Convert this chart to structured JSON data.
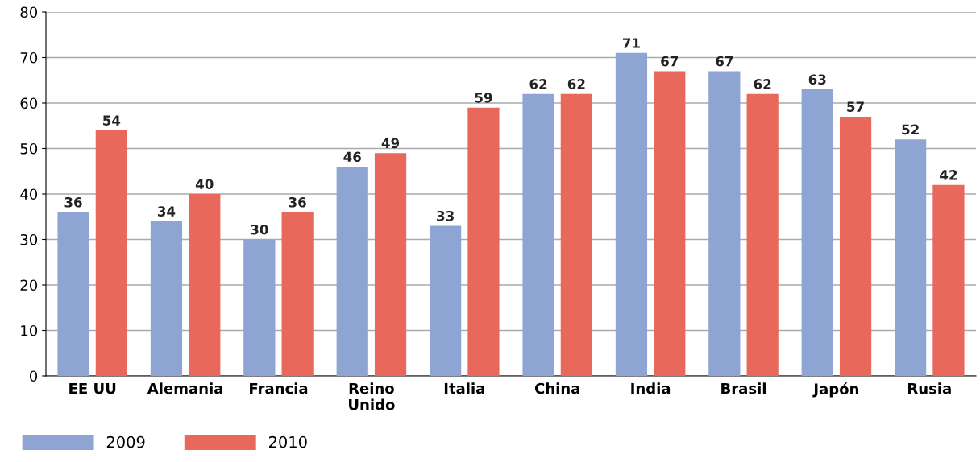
{
  "chart_data": {
    "type": "bar",
    "categories": [
      "EE UU",
      "Alemania",
      "Francia",
      "Reino\nUnido",
      "Italia",
      "China",
      "India",
      "Brasil",
      "Japón",
      "Rusia"
    ],
    "series": [
      {
        "name": "2009",
        "color": "#8ea5d4",
        "values": [
          36,
          34,
          30,
          46,
          33,
          62,
          71,
          67,
          63,
          52
        ]
      },
      {
        "name": "2010",
        "color": "#e8695b",
        "values": [
          54,
          40,
          36,
          49,
          59,
          62,
          67,
          62,
          57,
          42
        ]
      }
    ],
    "ylim": [
      0,
      80
    ],
    "yticks": [
      0,
      10,
      20,
      30,
      40,
      50,
      60,
      70,
      80
    ],
    "grid": "y",
    "legend": "bottom left",
    "data_labels": true
  }
}
